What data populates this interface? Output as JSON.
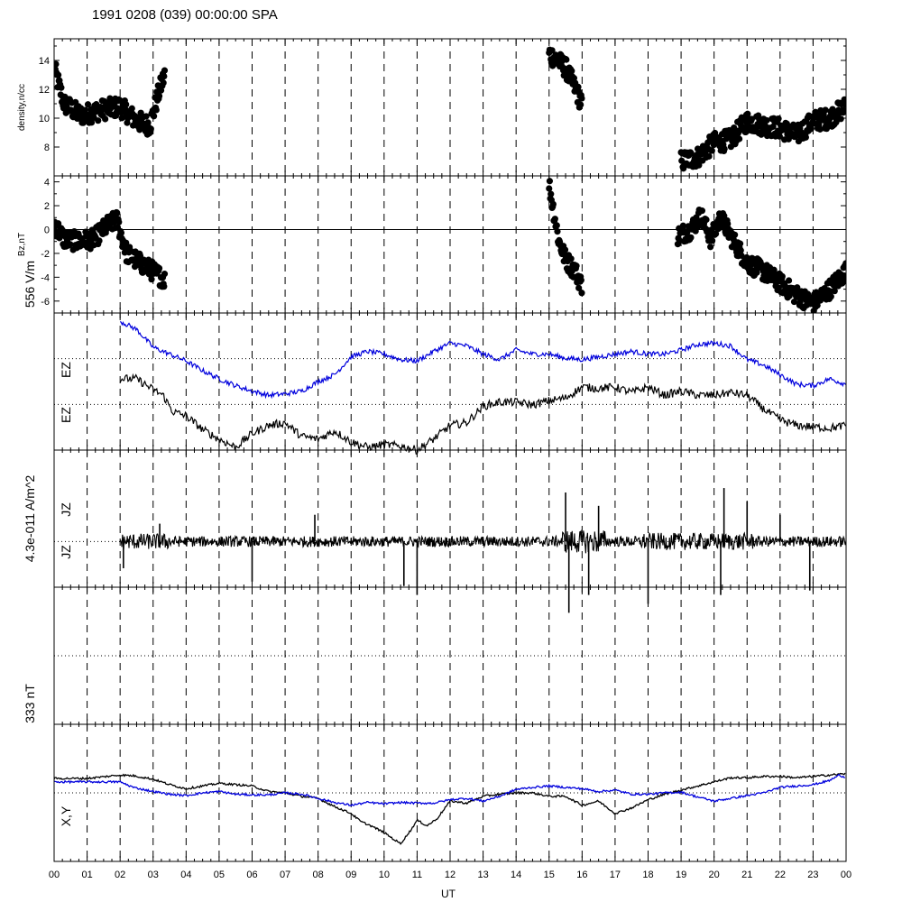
{
  "header": {
    "title": "1991 0208 (039) 00:00:00 SPA"
  },
  "colors": {
    "blue": "#0000dd",
    "black": "#000000"
  },
  "x_axis": {
    "label": "UT",
    "tick_labels": [
      "00",
      "01",
      "02",
      "03",
      "04",
      "05",
      "06",
      "07",
      "08",
      "09",
      "10",
      "11",
      "12",
      "13",
      "14",
      "15",
      "16",
      "17",
      "18",
      "19",
      "20",
      "21",
      "22",
      "23",
      "00"
    ],
    "range_hours": [
      0,
      24
    ]
  },
  "chart_data": [
    {
      "type": "scatter",
      "panel": "density",
      "ylabel": "density,n/cc",
      "ylim": [
        6,
        15.5
      ],
      "ytick_labels": [
        "8",
        "10",
        "12",
        "14"
      ],
      "ytick_values": [
        8,
        10,
        12,
        14
      ],
      "color": "#000000",
      "segments": [
        {
          "x": [
            0.0,
            3.4
          ],
          "y": [
            10.5,
            12.0
          ],
          "spread": 1.2
        },
        {
          "x": [
            14.9,
            16.0
          ],
          "y": [
            14.8,
            11.0
          ],
          "spread": 0.8
        },
        {
          "x": [
            18.9,
            24.0
          ],
          "y": [
            7.0,
            10.5
          ],
          "spread": 0.9
        }
      ],
      "key_points": [
        {
          "x": 0.0,
          "y": 13.5
        },
        {
          "x": 0.3,
          "y": 11.0
        },
        {
          "x": 0.8,
          "y": 10.2
        },
        {
          "x": 1.5,
          "y": 10.6
        },
        {
          "x": 2.0,
          "y": 10.8
        },
        {
          "x": 2.5,
          "y": 9.8
        },
        {
          "x": 2.9,
          "y": 9.5
        },
        {
          "x": 3.2,
          "y": 12.0
        },
        {
          "x": 3.35,
          "y": 13.0
        },
        {
          "x": 15.0,
          "y": 14.5
        },
        {
          "x": 15.5,
          "y": 13.5
        },
        {
          "x": 15.8,
          "y": 12.0
        },
        {
          "x": 16.0,
          "y": 11.0
        },
        {
          "x": 19.0,
          "y": 7.0
        },
        {
          "x": 19.5,
          "y": 7.3
        },
        {
          "x": 20.0,
          "y": 8.3
        },
        {
          "x": 20.5,
          "y": 8.5
        },
        {
          "x": 21.0,
          "y": 9.8
        },
        {
          "x": 21.5,
          "y": 9.5
        },
        {
          "x": 22.0,
          "y": 9.3
        },
        {
          "x": 22.5,
          "y": 8.8
        },
        {
          "x": 23.0,
          "y": 9.8
        },
        {
          "x": 23.5,
          "y": 10.0
        },
        {
          "x": 24.0,
          "y": 10.8
        }
      ]
    },
    {
      "type": "scatter",
      "panel": "bz",
      "ylabel": "Bz,nT",
      "ylim": [
        -7,
        4.5
      ],
      "ytick_labels": [
        "4",
        "2",
        "0",
        "-2",
        "-4",
        "-6"
      ],
      "ytick_values": [
        4,
        2,
        0,
        -2,
        -4,
        -6
      ],
      "color": "#000000",
      "key_points": [
        {
          "x": 0.0,
          "y": 0.5
        },
        {
          "x": 0.3,
          "y": -0.8
        },
        {
          "x": 0.7,
          "y": -1.0
        },
        {
          "x": 1.2,
          "y": -0.8
        },
        {
          "x": 1.6,
          "y": 0.3
        },
        {
          "x": 1.9,
          "y": 0.8
        },
        {
          "x": 2.2,
          "y": -2.0
        },
        {
          "x": 2.6,
          "y": -2.8
        },
        {
          "x": 3.0,
          "y": -3.5
        },
        {
          "x": 3.35,
          "y": -4.2
        },
        {
          "x": 15.0,
          "y": 3.8
        },
        {
          "x": 15.3,
          "y": -1.0
        },
        {
          "x": 15.5,
          "y": -2.5
        },
        {
          "x": 15.8,
          "y": -3.5
        },
        {
          "x": 16.0,
          "y": -4.8
        },
        {
          "x": 18.9,
          "y": -0.5
        },
        {
          "x": 19.3,
          "y": 0.0
        },
        {
          "x": 19.6,
          "y": 1.2
        },
        {
          "x": 19.9,
          "y": -0.8
        },
        {
          "x": 20.2,
          "y": 1.0
        },
        {
          "x": 20.6,
          "y": -1.0
        },
        {
          "x": 21.0,
          "y": -2.8
        },
        {
          "x": 21.5,
          "y": -3.5
        },
        {
          "x": 22.0,
          "y": -4.5
        },
        {
          "x": 22.5,
          "y": -5.5
        },
        {
          "x": 23.0,
          "y": -6.2
        },
        {
          "x": 23.5,
          "y": -5.0
        },
        {
          "x": 24.0,
          "y": -3.5
        }
      ]
    },
    {
      "type": "line",
      "panel": "ez",
      "scale_label": "556 V/m",
      "ylabels": [
        "EZ",
        "EZ"
      ],
      "series": [
        {
          "name": "EZ",
          "color": "#0000dd",
          "x": [
            2.0,
            2.5,
            3.0,
            3.5,
            4.0,
            4.5,
            5.0,
            5.5,
            6.0,
            6.5,
            7.0,
            7.5,
            8.0,
            8.5,
            9.0,
            9.5,
            10.0,
            10.5,
            11.0,
            11.5,
            12.0,
            12.5,
            13.0,
            13.5,
            14.0,
            14.5,
            15.0,
            15.5,
            16.0,
            16.5,
            17.0,
            17.5,
            18.0,
            18.5,
            19.0,
            19.5,
            20.0,
            20.5,
            21.0,
            21.5,
            22.0,
            22.5,
            23.0,
            23.5,
            24.0
          ],
          "y": [
            0.94,
            0.88,
            0.75,
            0.7,
            0.65,
            0.58,
            0.52,
            0.47,
            0.43,
            0.4,
            0.41,
            0.43,
            0.5,
            0.55,
            0.68,
            0.72,
            0.7,
            0.66,
            0.65,
            0.72,
            0.78,
            0.76,
            0.7,
            0.66,
            0.73,
            0.7,
            0.7,
            0.67,
            0.66,
            0.68,
            0.7,
            0.72,
            0.7,
            0.7,
            0.73,
            0.77,
            0.78,
            0.76,
            0.66,
            0.62,
            0.55,
            0.48,
            0.47,
            0.52,
            0.48
          ]
        },
        {
          "name": "EZ",
          "color": "#000000",
          "x": [
            2.0,
            2.5,
            3.0,
            3.3,
            3.6,
            4.0,
            4.5,
            5.0,
            5.5,
            6.0,
            6.5,
            7.0,
            7.5,
            8.0,
            8.5,
            9.0,
            9.5,
            10.0,
            10.5,
            11.0,
            11.5,
            12.0,
            12.5,
            13.0,
            13.5,
            14.0,
            14.5,
            15.0,
            15.5,
            16.0,
            16.5,
            17.0,
            17.5,
            18.0,
            18.5,
            19.0,
            19.5,
            20.0,
            20.5,
            21.0,
            21.5,
            22.0,
            22.5,
            23.0,
            23.5,
            24.0
          ],
          "y": [
            0.52,
            0.52,
            0.44,
            0.4,
            0.28,
            0.25,
            0.15,
            0.08,
            0.02,
            0.12,
            0.18,
            0.2,
            0.1,
            0.08,
            0.14,
            0.06,
            0.02,
            0.04,
            0.03,
            0.0,
            0.08,
            0.18,
            0.2,
            0.32,
            0.35,
            0.35,
            0.33,
            0.36,
            0.38,
            0.46,
            0.45,
            0.46,
            0.42,
            0.46,
            0.4,
            0.43,
            0.4,
            0.4,
            0.42,
            0.4,
            0.3,
            0.22,
            0.18,
            0.17,
            0.16,
            0.18
          ]
        }
      ]
    },
    {
      "type": "line",
      "panel": "jz",
      "scale_label": "4.3e-011 A/m^2",
      "ylabels": [
        "JZ",
        "JZ"
      ],
      "series": [
        {
          "name": "JZ",
          "color": "#000000",
          "x_range": [
            2.0,
            24.0
          ],
          "baseline": 0.0,
          "noise": 0.12,
          "spikes": [
            {
              "x": 2.1,
              "y": -0.3
            },
            {
              "x": 3.2,
              "y": 0.2
            },
            {
              "x": 6.0,
              "y": -0.45
            },
            {
              "x": 7.9,
              "y": 0.3
            },
            {
              "x": 10.6,
              "y": -0.5
            },
            {
              "x": 11.0,
              "y": -0.6
            },
            {
              "x": 15.5,
              "y": 0.55
            },
            {
              "x": 15.6,
              "y": -0.8
            },
            {
              "x": 16.2,
              "y": -0.6
            },
            {
              "x": 16.5,
              "y": 0.4
            },
            {
              "x": 18.0,
              "y": -0.7
            },
            {
              "x": 20.2,
              "y": -0.6
            },
            {
              "x": 20.3,
              "y": 0.6
            },
            {
              "x": 21.0,
              "y": 0.45
            },
            {
              "x": 22.9,
              "y": -0.55
            },
            {
              "x": 22.0,
              "y": 0.3
            }
          ]
        }
      ]
    },
    {
      "type": "line",
      "panel": "empty",
      "scale_label": "333 nT",
      "series": []
    },
    {
      "type": "line",
      "panel": "xy",
      "ylabels": [
        "X,Y"
      ],
      "series": [
        {
          "name": "X",
          "color": "#000000",
          "x": [
            0.0,
            1.0,
            2.0,
            2.4,
            3.0,
            3.5,
            4.0,
            4.5,
            5.0,
            5.5,
            6.0,
            6.5,
            7.0,
            7.5,
            8.0,
            8.5,
            9.0,
            9.3,
            9.6,
            10.0,
            10.3,
            10.5,
            10.8,
            11.0,
            11.3,
            11.6,
            12.0,
            12.5,
            13.0,
            13.5,
            14.0,
            14.5,
            15.0,
            15.5,
            16.0,
            16.5,
            17.0,
            17.5,
            18.0,
            18.5,
            19.0,
            19.5,
            20.0,
            20.5,
            21.0,
            21.5,
            22.0,
            22.5,
            23.0,
            23.5,
            24.0
          ],
          "y": [
            0.21,
            0.21,
            0.26,
            0.25,
            0.2,
            0.12,
            0.06,
            0.1,
            0.14,
            0.12,
            0.1,
            0.02,
            0.0,
            -0.05,
            -0.08,
            -0.2,
            -0.3,
            -0.42,
            -0.48,
            -0.58,
            -0.68,
            -0.74,
            -0.55,
            -0.4,
            -0.48,
            -0.38,
            -0.12,
            -0.15,
            -0.05,
            -0.02,
            0.0,
            0.0,
            -0.05,
            -0.05,
            -0.18,
            -0.12,
            -0.3,
            -0.22,
            -0.1,
            -0.02,
            0.04,
            0.1,
            0.16,
            0.22,
            0.22,
            0.24,
            0.24,
            0.22,
            0.24,
            0.26,
            0.28
          ]
        },
        {
          "name": "Y",
          "color": "#0000dd",
          "x": [
            0.0,
            1.0,
            2.0,
            2.4,
            3.0,
            3.5,
            4.0,
            4.5,
            5.0,
            5.5,
            6.0,
            6.5,
            7.0,
            7.5,
            8.0,
            8.5,
            9.0,
            9.5,
            10.0,
            10.5,
            11.0,
            11.5,
            12.0,
            12.5,
            13.0,
            13.5,
            14.0,
            14.5,
            15.0,
            15.5,
            16.0,
            16.5,
            17.0,
            17.5,
            18.0,
            18.5,
            19.0,
            19.5,
            20.0,
            20.5,
            21.0,
            21.5,
            22.0,
            22.5,
            23.0,
            23.5,
            23.8,
            24.0
          ],
          "y": [
            0.16,
            0.16,
            0.16,
            0.08,
            0.02,
            -0.02,
            -0.04,
            0.0,
            0.02,
            -0.02,
            -0.03,
            -0.03,
            0.0,
            -0.02,
            -0.08,
            -0.14,
            -0.18,
            -0.14,
            -0.16,
            -0.14,
            -0.15,
            -0.15,
            -0.1,
            -0.08,
            -0.12,
            -0.05,
            0.05,
            0.08,
            0.1,
            0.08,
            0.06,
            0.02,
            0.04,
            -0.02,
            -0.02,
            0.0,
            0.01,
            -0.06,
            -0.12,
            -0.08,
            -0.04,
            0.0,
            0.08,
            0.1,
            0.12,
            0.18,
            0.26,
            0.22
          ]
        }
      ]
    }
  ]
}
